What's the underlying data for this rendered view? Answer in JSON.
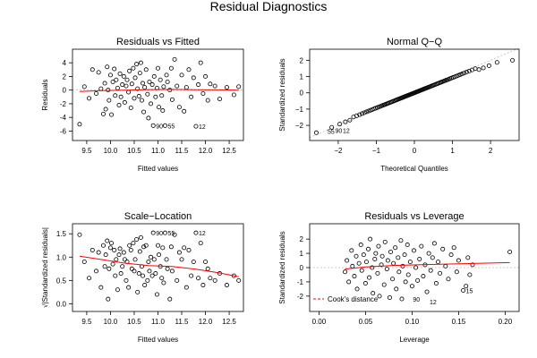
{
  "suptitle": "Residual Diagnostics",
  "colors": {
    "points": "#000000",
    "smooth": "#ff0000",
    "frame": "#000000",
    "refline": "#bbbbbb"
  },
  "chart_data": [
    {
      "id": "rvf",
      "type": "scatter",
      "title": "Residuals vs Fitted",
      "xlabel": "Fitted values",
      "ylabel": "Residuals",
      "xlim": [
        9.2,
        12.8
      ],
      "ylim": [
        -6.6,
        5.2
      ],
      "xticks": [
        9.5,
        10.0,
        10.5,
        11.0,
        11.5,
        12.0,
        12.5
      ],
      "xtick_labels": [
        "9.5",
        "10.0",
        "10.5",
        "11.0",
        "11.5",
        "12.0",
        "12.5"
      ],
      "yticks": [
        -6,
        -4,
        -2,
        0,
        2,
        4
      ],
      "ytick_labels": [
        "-6",
        "-4",
        "-2",
        "0",
        "2",
        "4"
      ],
      "zero_line": true,
      "points": [
        [
          9.35,
          -5.0
        ],
        [
          9.45,
          0.5
        ],
        [
          9.55,
          -1.2
        ],
        [
          9.62,
          3.0
        ],
        [
          9.7,
          -0.5
        ],
        [
          9.75,
          2.6
        ],
        [
          9.8,
          0.2
        ],
        [
          9.85,
          -3.5
        ],
        [
          9.88,
          1.0
        ],
        [
          9.9,
          -2.8
        ],
        [
          9.93,
          3.4
        ],
        [
          9.95,
          0.0
        ],
        [
          9.97,
          -1.5
        ],
        [
          10.0,
          2.2
        ],
        [
          10.02,
          -3.6
        ],
        [
          10.05,
          1.2
        ],
        [
          10.08,
          3.1
        ],
        [
          10.1,
          -0.8
        ],
        [
          10.12,
          1.5
        ],
        [
          10.15,
          0.3
        ],
        [
          10.18,
          -2.2
        ],
        [
          10.2,
          2.4
        ],
        [
          10.22,
          -1.0
        ],
        [
          10.25,
          0.8
        ],
        [
          10.28,
          2.0
        ],
        [
          10.3,
          -1.8
        ],
        [
          10.33,
          0.6
        ],
        [
          10.35,
          1.5
        ],
        [
          10.38,
          -0.3
        ],
        [
          10.4,
          2.8
        ],
        [
          10.43,
          -2.6
        ],
        [
          10.45,
          0.9
        ],
        [
          10.48,
          3.2
        ],
        [
          10.5,
          -1.2
        ],
        [
          10.52,
          1.8
        ],
        [
          10.55,
          3.8
        ],
        [
          10.57,
          0.2
        ],
        [
          10.6,
          -0.9
        ],
        [
          10.62,
          2.5
        ],
        [
          10.64,
          4.0
        ],
        [
          10.66,
          -1.5
        ],
        [
          10.68,
          1.0
        ],
        [
          10.7,
          -3.2
        ],
        [
          10.72,
          0.4
        ],
        [
          10.75,
          3.0
        ],
        [
          10.78,
          -0.6
        ],
        [
          10.8,
          -4.1
        ],
        [
          10.82,
          1.2
        ],
        [
          10.85,
          -2.0
        ],
        [
          10.88,
          0.8
        ],
        [
          10.9,
          -5.2
        ],
        [
          10.92,
          2.0
        ],
        [
          10.95,
          -1.0
        ],
        [
          10.98,
          0.3
        ],
        [
          11.0,
          3.2
        ],
        [
          11.02,
          -2.5
        ],
        [
          11.05,
          1.5
        ],
        [
          11.08,
          -0.8
        ],
        [
          11.1,
          -3.0
        ],
        [
          11.12,
          0.5
        ],
        [
          11.15,
          -5.2
        ],
        [
          11.18,
          2.2
        ],
        [
          11.2,
          1.2
        ],
        [
          11.25,
          0.0
        ],
        [
          11.28,
          3.2
        ],
        [
          11.3,
          -1.4
        ],
        [
          11.35,
          4.5
        ],
        [
          11.4,
          0.6
        ],
        [
          11.45,
          -2.5
        ],
        [
          11.5,
          2.2
        ],
        [
          11.55,
          -3.1
        ],
        [
          11.6,
          0.4
        ],
        [
          11.65,
          3.0
        ],
        [
          11.7,
          -1.0
        ],
        [
          11.75,
          1.8
        ],
        [
          11.8,
          -5.3
        ],
        [
          11.85,
          0.8
        ],
        [
          11.9,
          4.0
        ],
        [
          11.95,
          -0.5
        ],
        [
          12.0,
          2.0
        ],
        [
          12.05,
          -1.5
        ],
        [
          12.1,
          0.9
        ],
        [
          12.2,
          0.6
        ],
        [
          12.3,
          -1.3
        ],
        [
          12.45,
          0.4
        ],
        [
          12.6,
          -0.7
        ],
        [
          12.7,
          0.5
        ]
      ],
      "smooth": [
        [
          9.35,
          -0.2
        ],
        [
          9.8,
          -0.08
        ],
        [
          10.3,
          0.0
        ],
        [
          10.8,
          0.08
        ],
        [
          11.3,
          0.1
        ],
        [
          11.8,
          0.06
        ],
        [
          12.3,
          0.03
        ],
        [
          12.7,
          0.0
        ]
      ],
      "labels": [
        {
          "text": "90",
          "x": 10.9,
          "y": -5.2
        },
        {
          "text": "55",
          "x": 11.15,
          "y": -5.2
        },
        {
          "text": "12",
          "x": 11.8,
          "y": -5.3
        }
      ]
    },
    {
      "id": "qq",
      "type": "scatter",
      "title": "Normal Q−Q",
      "xlabel": "Theoretical Quantiles",
      "ylabel": "Standardized residuals",
      "xlim": [
        -2.75,
        2.75
      ],
      "ylim": [
        -2.6,
        2.35
      ],
      "xticks": [
        -2,
        -1,
        0,
        1,
        2
      ],
      "xtick_labels": [
        "−2",
        "−1",
        "0",
        "1",
        "2"
      ],
      "yticks": [
        -2,
        -1,
        0,
        1,
        2
      ],
      "ytick_labels": [
        "−2",
        "−1",
        "0",
        "1",
        "2"
      ],
      "ref_line": [
        [
          -2.75,
          -2.75
        ],
        [
          2.75,
          2.75
        ]
      ],
      "qq_n": 100,
      "qq_ends": [
        [
          -2.6,
          -2.45
        ],
        [
          2.6,
          2.0
        ]
      ],
      "labels": [
        {
          "text": "55",
          "x": -2.35,
          "y": -2.35
        },
        {
          "text": "90",
          "x": -2.15,
          "y": -2.3
        },
        {
          "text": "12",
          "x": -1.95,
          "y": -2.3
        }
      ]
    },
    {
      "id": "scale",
      "type": "scatter",
      "title": "Scale−Location",
      "xlabel": "Fitted values",
      "ylabel": "√|Standardized residuals|",
      "xlim": [
        9.2,
        12.8
      ],
      "ylim": [
        -0.05,
        1.6
      ],
      "xticks": [
        9.5,
        10.0,
        10.5,
        11.0,
        11.5,
        12.0,
        12.5
      ],
      "xtick_labels": [
        "9.5",
        "10.0",
        "10.5",
        "11.0",
        "11.5",
        "12.0",
        "12.5"
      ],
      "yticks": [
        0.0,
        0.5,
        1.0,
        1.5
      ],
      "ytick_labels": [
        "0.0",
        "0.5",
        "1.0",
        "1.5"
      ],
      "points": [
        [
          9.35,
          1.48
        ],
        [
          9.45,
          0.9
        ],
        [
          9.55,
          0.55
        ],
        [
          9.62,
          1.15
        ],
        [
          9.7,
          0.7
        ],
        [
          9.75,
          1.1
        ],
        [
          9.8,
          0.35
        ],
        [
          9.85,
          1.25
        ],
        [
          9.88,
          0.8
        ],
        [
          9.9,
          1.05
        ],
        [
          9.93,
          1.35
        ],
        [
          9.95,
          0.1
        ],
        [
          9.97,
          0.75
        ],
        [
          10.0,
          1.2
        ],
        [
          10.02,
          1.3
        ],
        [
          10.05,
          0.85
        ],
        [
          10.08,
          1.15
        ],
        [
          10.1,
          0.6
        ],
        [
          10.12,
          0.95
        ],
        [
          10.15,
          0.3
        ],
        [
          10.18,
          1.05
        ],
        [
          10.2,
          1.18
        ],
        [
          10.22,
          0.65
        ],
        [
          10.25,
          0.8
        ],
        [
          10.28,
          1.1
        ],
        [
          10.3,
          0.95
        ],
        [
          10.33,
          0.5
        ],
        [
          10.35,
          0.9
        ],
        [
          10.38,
          0.35
        ],
        [
          10.4,
          1.25
        ],
        [
          10.43,
          1.15
        ],
        [
          10.45,
          0.75
        ],
        [
          10.48,
          1.3
        ],
        [
          10.5,
          0.7
        ],
        [
          10.52,
          0.95
        ],
        [
          10.55,
          1.38
        ],
        [
          10.57,
          0.25
        ],
        [
          10.6,
          0.65
        ],
        [
          10.62,
          1.12
        ],
        [
          10.64,
          1.42
        ],
        [
          10.66,
          0.8
        ],
        [
          10.68,
          0.6
        ],
        [
          10.7,
          1.22
        ],
        [
          10.72,
          0.4
        ],
        [
          10.75,
          1.25
        ],
        [
          10.78,
          0.5
        ],
        [
          10.8,
          0.9
        ],
        [
          10.82,
          0.7
        ],
        [
          10.85,
          1.0
        ],
        [
          10.88,
          0.6
        ],
        [
          10.9,
          1.52
        ],
        [
          10.92,
          0.95
        ],
        [
          10.95,
          0.65
        ],
        [
          10.98,
          0.2
        ],
        [
          11.0,
          1.25
        ],
        [
          11.02,
          1.05
        ],
        [
          11.05,
          0.8
        ],
        [
          11.08,
          0.55
        ],
        [
          11.1,
          1.2
        ],
        [
          11.12,
          0.45
        ],
        [
          11.15,
          1.52
        ],
        [
          11.18,
          0.95
        ],
        [
          11.2,
          0.75
        ],
        [
          11.25,
          0.1
        ],
        [
          11.28,
          1.22
        ],
        [
          11.3,
          0.7
        ],
        [
          11.35,
          1.48
        ],
        [
          11.4,
          0.5
        ],
        [
          11.45,
          1.1
        ],
        [
          11.5,
          0.95
        ],
        [
          11.55,
          1.2
        ],
        [
          11.6,
          0.35
        ],
        [
          11.65,
          1.15
        ],
        [
          11.7,
          0.6
        ],
        [
          11.75,
          0.9
        ],
        [
          11.8,
          1.52
        ],
        [
          11.85,
          0.55
        ],
        [
          11.9,
          1.3
        ],
        [
          11.95,
          0.4
        ],
        [
          12.0,
          0.9
        ],
        [
          12.05,
          0.75
        ],
        [
          12.1,
          0.55
        ],
        [
          12.2,
          0.5
        ],
        [
          12.3,
          0.65
        ],
        [
          12.45,
          0.4
        ],
        [
          12.6,
          0.6
        ],
        [
          12.7,
          0.5
        ]
      ],
      "smooth": [
        [
          9.35,
          1.02
        ],
        [
          9.8,
          0.95
        ],
        [
          10.3,
          0.87
        ],
        [
          10.8,
          0.82
        ],
        [
          11.3,
          0.8
        ],
        [
          11.8,
          0.74
        ],
        [
          12.3,
          0.66
        ],
        [
          12.7,
          0.58
        ]
      ],
      "labels": [
        {
          "text": "90",
          "x": 10.9,
          "y": 1.52
        },
        {
          "text": "55",
          "x": 11.15,
          "y": 1.52
        },
        {
          "text": "12",
          "x": 11.8,
          "y": 1.52
        }
      ]
    },
    {
      "id": "rvl",
      "type": "scatter",
      "title": "Residuals vs Leverage",
      "xlabel": "Leverage",
      "ylabel": "Standardized residuals",
      "xlim": [
        -0.01,
        0.215
      ],
      "ylim": [
        -2.7,
        2.7
      ],
      "xticks": [
        0.0,
        0.05,
        0.1,
        0.15,
        0.2
      ],
      "xtick_labels": [
        "0.00",
        "0.05",
        "0.10",
        "0.15",
        "0.20"
      ],
      "yticks": [
        -2,
        -1,
        0,
        1,
        2
      ],
      "ytick_labels": [
        "-2",
        "-1",
        "0",
        "1",
        "2"
      ],
      "zero_line": true,
      "legend": {
        "text": "Cook's distance",
        "position": "bottom-left"
      },
      "points": [
        [
          0.028,
          -0.3
        ],
        [
          0.03,
          0.5
        ],
        [
          0.032,
          -1.0
        ],
        [
          0.035,
          1.2
        ],
        [
          0.036,
          0.1
        ],
        [
          0.038,
          -0.6
        ],
        [
          0.04,
          0.8
        ],
        [
          0.041,
          -1.5
        ],
        [
          0.043,
          0.3
        ],
        [
          0.045,
          1.6
        ],
        [
          0.046,
          -0.2
        ],
        [
          0.048,
          0.9
        ],
        [
          0.05,
          -1.1
        ],
        [
          0.051,
          0.4
        ],
        [
          0.053,
          1.3
        ],
        [
          0.054,
          -0.7
        ],
        [
          0.055,
          2.0
        ],
        [
          0.057,
          0.0
        ],
        [
          0.058,
          -1.8
        ],
        [
          0.06,
          0.6
        ],
        [
          0.061,
          1.0
        ],
        [
          0.063,
          -0.4
        ],
        [
          0.064,
          1.5
        ],
        [
          0.065,
          -2.0
        ],
        [
          0.067,
          0.2
        ],
        [
          0.068,
          0.8
        ],
        [
          0.07,
          -1.2
        ],
        [
          0.071,
          1.8
        ],
        [
          0.073,
          -0.1
        ],
        [
          0.074,
          0.5
        ],
        [
          0.076,
          -2.1
        ],
        [
          0.077,
          1.1
        ],
        [
          0.079,
          -0.8
        ],
        [
          0.08,
          0.3
        ],
        [
          0.082,
          1.4
        ],
        [
          0.083,
          -1.5
        ],
        [
          0.085,
          0.7
        ],
        [
          0.086,
          -0.3
        ],
        [
          0.088,
          1.9
        ],
        [
          0.089,
          -2.2
        ],
        [
          0.09,
          0.1
        ],
        [
          0.092,
          0.9
        ],
        [
          0.093,
          -1.0
        ],
        [
          0.095,
          1.6
        ],
        [
          0.096,
          -0.5
        ],
        [
          0.098,
          0.4
        ],
        [
          0.1,
          -1.3
        ],
        [
          0.102,
          1.2
        ],
        [
          0.104,
          0.0
        ],
        [
          0.106,
          -0.9
        ],
        [
          0.108,
          0.6
        ],
        [
          0.11,
          1.5
        ],
        [
          0.112,
          -0.6
        ],
        [
          0.114,
          0.2
        ],
        [
          0.116,
          -1.7
        ],
        [
          0.118,
          1.0
        ],
        [
          0.12,
          -0.2
        ],
        [
          0.122,
          0.7
        ],
        [
          0.124,
          1.7
        ],
        [
          0.126,
          -1.1
        ],
        [
          0.128,
          0.4
        ],
        [
          0.13,
          -0.4
        ],
        [
          0.133,
          1.3
        ],
        [
          0.136,
          0.1
        ],
        [
          0.139,
          -0.8
        ],
        [
          0.142,
          0.9
        ],
        [
          0.145,
          1.4
        ],
        [
          0.148,
          -0.3
        ],
        [
          0.15,
          0.5
        ],
        [
          0.155,
          -1.6
        ],
        [
          0.158,
          -1.3
        ],
        [
          0.16,
          0.7
        ],
        [
          0.162,
          -0.5
        ],
        [
          0.165,
          0.2
        ],
        [
          0.205,
          1.1
        ]
      ],
      "smooth": [
        [
          0.028,
          -0.1
        ],
        [
          0.05,
          0.05
        ],
        [
          0.08,
          0.15
        ],
        [
          0.11,
          0.2
        ],
        [
          0.14,
          0.25
        ],
        [
          0.17,
          0.3
        ],
        [
          0.205,
          0.35
        ]
      ],
      "labels": [
        {
          "text": "90",
          "x": 0.098,
          "y": -2.2
        },
        {
          "text": "12",
          "x": 0.116,
          "y": -2.4
        },
        {
          "text": "15",
          "x": 0.155,
          "y": -1.6
        }
      ]
    }
  ]
}
